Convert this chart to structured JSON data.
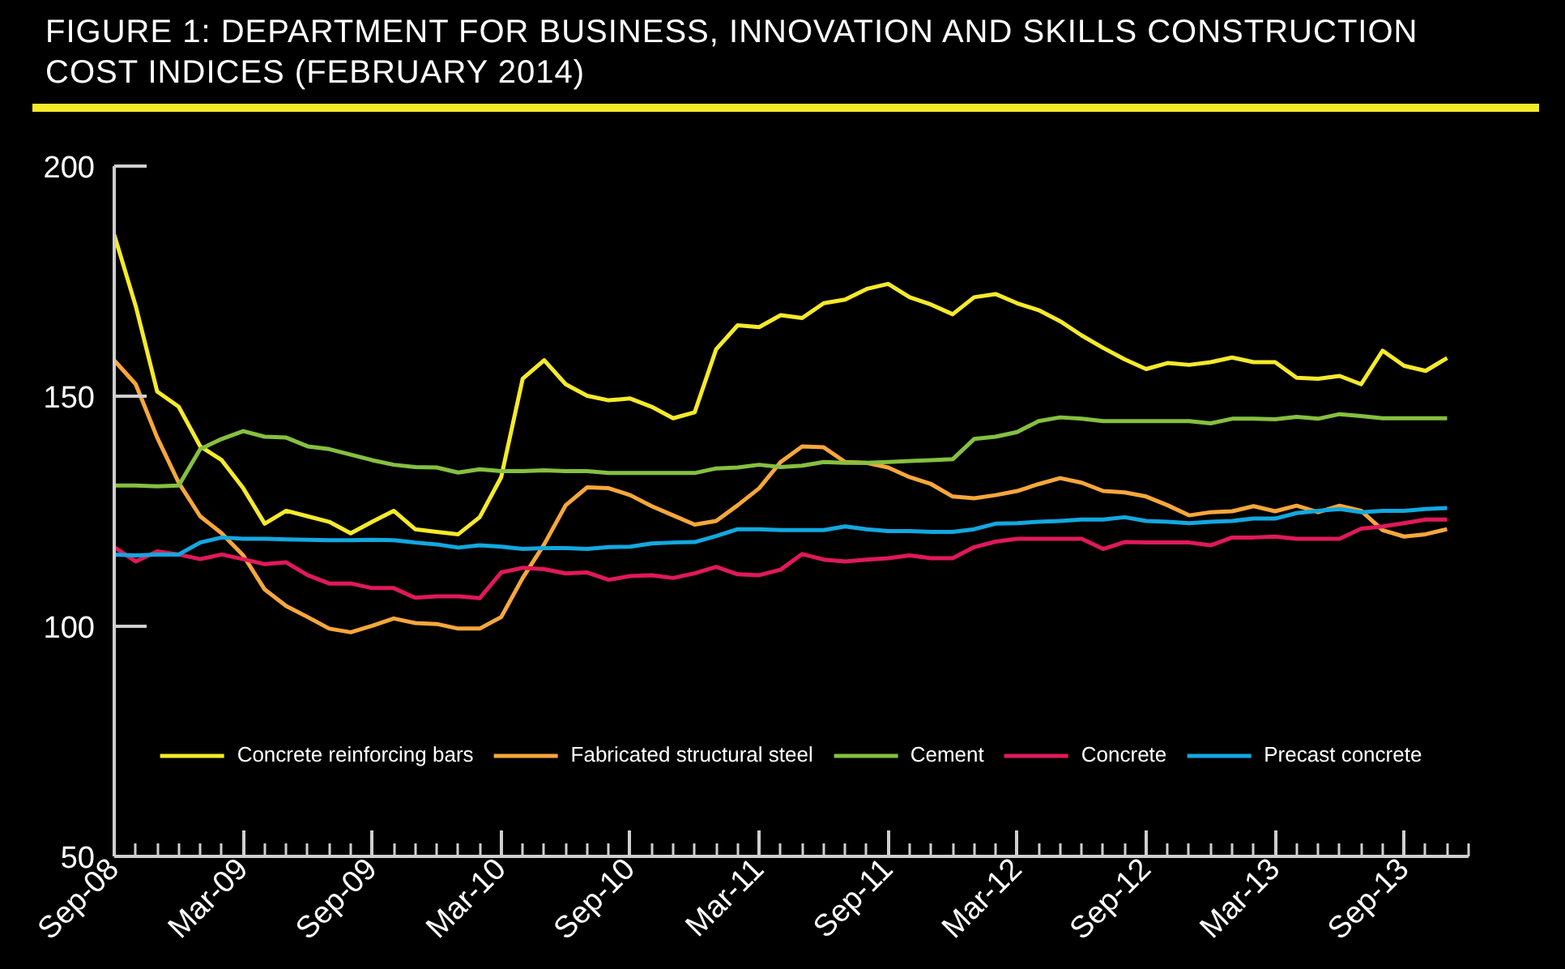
{
  "chart_data": {
    "type": "line",
    "title": "FIGURE 1: DEPARTMENT FOR BUSINESS, INNOVATION AND SKILLS CONSTRUCTION COST INDICES (FEBRUARY 2014)",
    "x": [
      "2008-09",
      "2008-10",
      "2008-11",
      "2008-12",
      "2009-01",
      "2009-02",
      "2009-03",
      "2009-04",
      "2009-05",
      "2009-06",
      "2009-07",
      "2009-08",
      "2009-09",
      "2009-10",
      "2009-11",
      "2009-12",
      "2010-01",
      "2010-02",
      "2010-03",
      "2010-04",
      "2010-05",
      "2010-06",
      "2010-07",
      "2010-08",
      "2010-09",
      "2010-10",
      "2010-11",
      "2010-12",
      "2011-01",
      "2011-02",
      "2011-03",
      "2011-04",
      "2011-05",
      "2011-06",
      "2011-07",
      "2011-08",
      "2011-09",
      "2011-10",
      "2011-11",
      "2011-12",
      "2012-01",
      "2012-02",
      "2012-03",
      "2012-04",
      "2012-05",
      "2012-06",
      "2012-07",
      "2012-08",
      "2012-09",
      "2012-10",
      "2012-11",
      "2012-12",
      "2013-01",
      "2013-02",
      "2013-03",
      "2013-04",
      "2013-05",
      "2013-06",
      "2013-07",
      "2013-08",
      "2013-09",
      "2013-10",
      "2013-11"
    ],
    "series": [
      {
        "name": "Concrete reinforcing bars",
        "color": "#f5ea2a",
        "values": [
          185.1,
          169.6,
          151.0,
          147.7,
          139.1,
          136.1,
          130.0,
          122.3,
          125.1,
          123.9,
          122.7,
          120.2,
          122.7,
          125.1,
          121.1,
          120.5,
          120.0,
          123.7,
          132.4,
          153.8,
          157.8,
          152.6,
          150.1,
          149.1,
          149.5,
          147.7,
          145.2,
          146.5,
          160.2,
          165.4,
          165.0,
          167.6,
          167.0,
          170.2,
          171.0,
          173.3,
          174.4,
          171.5,
          169.9,
          167.8,
          171.5,
          172.2,
          170.2,
          168.7,
          166.3,
          163.2,
          160.5,
          158.0,
          155.9,
          157.2,
          156.8,
          157.4,
          158.4,
          157.4,
          157.4,
          154.0,
          153.8,
          154.4,
          152.6,
          159.9,
          156.6,
          155.5,
          158.3
        ]
      },
      {
        "name": "Fabricated structural steel",
        "color": "#f7a73b",
        "values": [
          157.8,
          152.6,
          141.0,
          131.2,
          123.9,
          120.2,
          115.4,
          108.0,
          104.4,
          102.0,
          99.5,
          98.7,
          100.1,
          101.7,
          100.7,
          100.5,
          99.5,
          99.5,
          102.0,
          110.5,
          117.8,
          126.3,
          130.2,
          130.0,
          128.5,
          126.1,
          124.1,
          122.1,
          122.9,
          126.3,
          130.0,
          135.7,
          139.1,
          138.9,
          135.7,
          135.5,
          134.5,
          132.4,
          130.9,
          128.2,
          127.8,
          128.5,
          129.4,
          130.9,
          132.2,
          131.2,
          129.4,
          129.1,
          128.2,
          126.3,
          124.1,
          124.8,
          125.0,
          126.1,
          125.0,
          126.2,
          124.8,
          126.2,
          125.1,
          120.9,
          119.5,
          120.0,
          121.1
        ]
      },
      {
        "name": "Cement",
        "color": "#86c040",
        "values": [
          130.6,
          130.6,
          130.4,
          130.6,
          138.5,
          140.7,
          142.4,
          141.2,
          141.0,
          139.1,
          138.5,
          137.3,
          136.1,
          135.1,
          134.6,
          134.5,
          133.4,
          134.1,
          133.7,
          133.7,
          133.9,
          133.7,
          133.7,
          133.3,
          133.3,
          133.3,
          133.3,
          133.3,
          134.3,
          134.5,
          135.1,
          134.6,
          134.9,
          135.7,
          135.5,
          135.5,
          135.7,
          135.9,
          136.1,
          136.3,
          140.7,
          141.2,
          142.2,
          144.6,
          145.4,
          145.1,
          144.6,
          144.6,
          144.6,
          144.6,
          144.6,
          144.1,
          145.1,
          145.1,
          145.0,
          145.5,
          145.1,
          146.1,
          145.7,
          145.2,
          145.2,
          145.2,
          145.2
        ]
      },
      {
        "name": "Concrete",
        "color": "#e0195a",
        "values": [
          117.2,
          114.1,
          116.3,
          115.6,
          114.6,
          115.6,
          114.6,
          113.5,
          113.9,
          111.1,
          109.3,
          109.3,
          108.3,
          108.3,
          106.2,
          106.5,
          106.5,
          106.1,
          111.7,
          112.7,
          112.4,
          111.5,
          111.7,
          110.1,
          110.9,
          111.1,
          110.5,
          111.5,
          112.9,
          111.3,
          111.1,
          112.3,
          115.7,
          114.5,
          114.1,
          114.5,
          114.8,
          115.4,
          114.8,
          114.8,
          117.2,
          118.4,
          119.0,
          119.0,
          119.0,
          119.0,
          116.8,
          118.3,
          118.2,
          118.2,
          118.2,
          117.6,
          119.3,
          119.3,
          119.5,
          119.0,
          119.0,
          119.0,
          121.2,
          121.7,
          122.4,
          123.2,
          123.2
        ]
      },
      {
        "name": "Precast concrete",
        "color": "#12a8e0",
        "values": [
          115.6,
          115.4,
          115.6,
          115.6,
          118.2,
          119.3,
          119.0,
          119.0,
          118.9,
          118.8,
          118.7,
          118.7,
          118.8,
          118.7,
          118.2,
          117.8,
          117.1,
          117.6,
          117.3,
          116.8,
          117.0,
          117.0,
          116.8,
          117.2,
          117.3,
          118.0,
          118.2,
          118.3,
          119.6,
          121.1,
          121.1,
          120.9,
          120.9,
          120.9,
          121.7,
          121.1,
          120.7,
          120.7,
          120.5,
          120.5,
          121.1,
          122.3,
          122.4,
          122.7,
          122.9,
          123.2,
          123.2,
          123.7,
          122.9,
          122.7,
          122.4,
          122.7,
          122.9,
          123.4,
          123.4,
          124.6,
          125.1,
          125.5,
          124.8,
          125.1,
          125.1,
          125.5,
          125.7
        ]
      }
    ],
    "xlim": [
      "2008-09",
      "2013-12"
    ],
    "xticks": [
      {
        "value": "2008-09",
        "label": "Sep-08"
      },
      {
        "value": "2009-03",
        "label": "Mar-09"
      },
      {
        "value": "2009-09",
        "label": "Sep-09"
      },
      {
        "value": "2010-03",
        "label": "Mar-10"
      },
      {
        "value": "2010-09",
        "label": "Sep-10"
      },
      {
        "value": "2011-03",
        "label": "Mar-11"
      },
      {
        "value": "2011-09",
        "label": "Sep-11"
      },
      {
        "value": "2012-03",
        "label": "Mar-12"
      },
      {
        "value": "2012-09",
        "label": "Sep-12"
      },
      {
        "value": "2013-03",
        "label": "Mar-13"
      },
      {
        "value": "2013-09",
        "label": "Sep-13"
      },
      {
        "value": "2008-10",
        "label": null
      },
      {
        "value": "2008-11",
        "label": null
      },
      {
        "value": "2008-12",
        "label": null
      },
      {
        "value": "2009-01",
        "label": null
      },
      {
        "value": "2009-02",
        "label": null
      },
      {
        "value": "2009-04",
        "label": null
      },
      {
        "value": "2009-05",
        "label": null
      },
      {
        "value": "2009-06",
        "label": null
      },
      {
        "value": "2009-07",
        "label": null
      },
      {
        "value": "2009-08",
        "label": null
      },
      {
        "value": "2009-10",
        "label": null
      },
      {
        "value": "2009-11",
        "label": null
      },
      {
        "value": "2009-12",
        "label": null
      },
      {
        "value": "2010-01",
        "label": null
      },
      {
        "value": "2010-02",
        "label": null
      },
      {
        "value": "2010-04",
        "label": null
      },
      {
        "value": "2010-05",
        "label": null
      },
      {
        "value": "2010-06",
        "label": null
      },
      {
        "value": "2010-07",
        "label": null
      },
      {
        "value": "2010-08",
        "label": null
      },
      {
        "value": "2010-10",
        "label": null
      },
      {
        "value": "2010-11",
        "label": null
      },
      {
        "value": "2010-12",
        "label": null
      },
      {
        "value": "2011-01",
        "label": null
      },
      {
        "value": "2011-02",
        "label": null
      },
      {
        "value": "2011-04",
        "label": null
      },
      {
        "value": "2011-05",
        "label": null
      },
      {
        "value": "2011-06",
        "label": null
      },
      {
        "value": "2011-07",
        "label": null
      },
      {
        "value": "2011-08",
        "label": null
      },
      {
        "value": "2011-10",
        "label": null
      },
      {
        "value": "2011-11",
        "label": null
      },
      {
        "value": "2011-12",
        "label": null
      },
      {
        "value": "2012-01",
        "label": null
      },
      {
        "value": "2012-02",
        "label": null
      },
      {
        "value": "2012-04",
        "label": null
      },
      {
        "value": "2012-05",
        "label": null
      },
      {
        "value": "2012-06",
        "label": null
      },
      {
        "value": "2012-07",
        "label": null
      },
      {
        "value": "2012-08",
        "label": null
      },
      {
        "value": "2012-10",
        "label": null
      },
      {
        "value": "2012-11",
        "label": null
      },
      {
        "value": "2012-12",
        "label": null
      },
      {
        "value": "2013-01",
        "label": null
      },
      {
        "value": "2013-02",
        "label": null
      },
      {
        "value": "2013-04",
        "label": null
      },
      {
        "value": "2013-05",
        "label": null
      },
      {
        "value": "2013-06",
        "label": null
      },
      {
        "value": "2013-07",
        "label": null
      },
      {
        "value": "2013-08",
        "label": null
      },
      {
        "value": "2013-10",
        "label": null
      },
      {
        "value": "2013-11",
        "label": null
      },
      {
        "value": "2013-12",
        "label": null
      }
    ],
    "ylim": [
      50,
      200
    ],
    "yticks": [
      50,
      100,
      150,
      200
    ],
    "grid": false,
    "legend": "bottom",
    "line_style": "solid",
    "marker": "none"
  }
}
